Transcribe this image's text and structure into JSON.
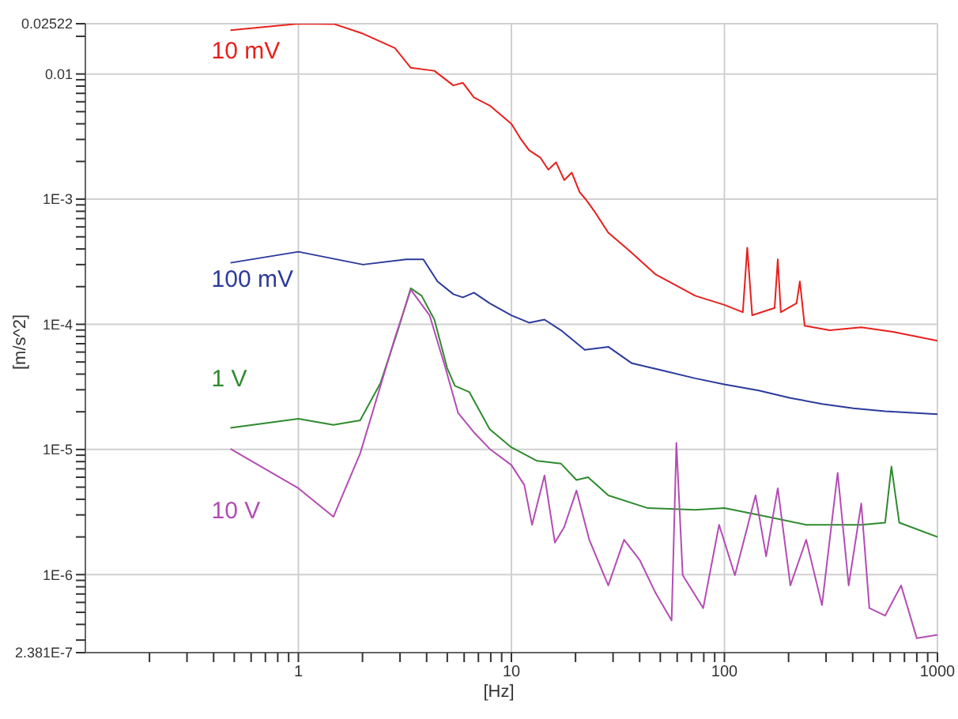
{
  "chart_data": {
    "type": "line",
    "xlabel": "[Hz]",
    "ylabel": "[m/s^2]",
    "log": "xy",
    "grid": true,
    "xlim": [
      0.1,
      1000
    ],
    "xticks": [
      {
        "value": 0.2,
        "label": null
      },
      {
        "value": 0.3,
        "label": null
      },
      {
        "value": 0.4,
        "label": null
      },
      {
        "value": 0.5,
        "label": null
      },
      {
        "value": 0.6,
        "label": null
      },
      {
        "value": 0.7,
        "label": null
      },
      {
        "value": 0.8,
        "label": null
      },
      {
        "value": 0.9,
        "label": null
      },
      1,
      {
        "value": 2,
        "label": null
      },
      {
        "value": 3,
        "label": null
      },
      {
        "value": 4,
        "label": null
      },
      {
        "value": 5,
        "label": null
      },
      {
        "value": 6,
        "label": null
      },
      {
        "value": 7,
        "label": null
      },
      {
        "value": 8,
        "label": null
      },
      {
        "value": 9,
        "label": null
      },
      10,
      {
        "value": 20,
        "label": null
      },
      {
        "value": 30,
        "label": null
      },
      {
        "value": 40,
        "label": null
      },
      {
        "value": 50,
        "label": null
      },
      {
        "value": 60,
        "label": null
      },
      {
        "value": 70,
        "label": null
      },
      {
        "value": 80,
        "label": null
      },
      {
        "value": 90,
        "label": null
      },
      100,
      {
        "value": 200,
        "label": null
      },
      {
        "value": 300,
        "label": null
      },
      {
        "value": 400,
        "label": null
      },
      {
        "value": 500,
        "label": null
      },
      {
        "value": 600,
        "label": null
      },
      {
        "value": 700,
        "label": null
      },
      {
        "value": 800,
        "label": null
      },
      {
        "value": 900,
        "label": null
      },
      1000
    ],
    "ylim": [
      2.381e-07,
      0.02522
    ],
    "yticks": [
      {
        "value": 2.381e-07,
        "label": "2.381E-7"
      },
      {
        "value": 3e-07,
        "label": null
      },
      {
        "value": 4e-07,
        "label": null
      },
      {
        "value": 5e-07,
        "label": null
      },
      {
        "value": 6e-07,
        "label": null
      },
      {
        "value": 7e-07,
        "label": null
      },
      {
        "value": 8e-07,
        "label": null
      },
      {
        "value": 9e-07,
        "label": null
      },
      {
        "value": 1e-06,
        "label": "1E-6"
      },
      {
        "value": 2e-06,
        "label": null
      },
      {
        "value": 3e-06,
        "label": null
      },
      {
        "value": 4e-06,
        "label": null
      },
      {
        "value": 5e-06,
        "label": null
      },
      {
        "value": 6e-06,
        "label": null
      },
      {
        "value": 7e-06,
        "label": null
      },
      {
        "value": 8e-06,
        "label": null
      },
      {
        "value": 9e-06,
        "label": null
      },
      {
        "value": 1e-05,
        "label": "1E-5"
      },
      {
        "value": 2e-05,
        "label": null
      },
      {
        "value": 3e-05,
        "label": null
      },
      {
        "value": 4e-05,
        "label": null
      },
      {
        "value": 5e-05,
        "label": null
      },
      {
        "value": 6e-05,
        "label": null
      },
      {
        "value": 7e-05,
        "label": null
      },
      {
        "value": 8e-05,
        "label": null
      },
      {
        "value": 9e-05,
        "label": null
      },
      {
        "value": 0.0001,
        "label": "1E-4"
      },
      {
        "value": 0.0002,
        "label": null
      },
      {
        "value": 0.0003,
        "label": null
      },
      {
        "value": 0.0004,
        "label": null
      },
      {
        "value": 0.0005,
        "label": null
      },
      {
        "value": 0.0006,
        "label": null
      },
      {
        "value": 0.0007,
        "label": null
      },
      {
        "value": 0.0008,
        "label": null
      },
      {
        "value": 0.0009,
        "label": null
      },
      {
        "value": 0.001,
        "label": "1E-3"
      },
      {
        "value": 0.002,
        "label": null
      },
      {
        "value": 0.003,
        "label": null
      },
      {
        "value": 0.004,
        "label": null
      },
      {
        "value": 0.005,
        "label": null
      },
      {
        "value": 0.006,
        "label": null
      },
      {
        "value": 0.007,
        "label": null
      },
      {
        "value": 0.008,
        "label": null
      },
      {
        "value": 0.009,
        "label": null
      },
      0.01,
      {
        "value": 0.02,
        "label": null
      },
      0.02522
    ],
    "series": [
      {
        "name": "10 mV",
        "color": "#e8201c",
        "x": [
          0.48,
          1,
          1.48,
          1.98,
          2.84,
          3.37,
          4.35,
          5.34,
          5.92,
          6.67,
          7.91,
          10,
          11.1,
          12.1,
          13.7,
          14.9,
          16.2,
          17.7,
          19.2,
          20.9,
          22.4,
          24.4,
          28.5,
          35.6,
          47.6,
          73,
          100,
          122,
          128,
          135,
          172,
          178,
          184,
          218,
          226,
          238,
          312,
          439,
          619,
          1000
        ],
        "values": [
          0.0224,
          0.0252,
          0.025,
          0.0212,
          0.0161,
          0.0112,
          0.0106,
          0.0081,
          0.0085,
          0.0065,
          0.0056,
          0.004,
          0.003,
          0.00246,
          0.00214,
          0.00172,
          0.00197,
          0.00142,
          0.00163,
          0.00114,
          0.00099,
          0.00081,
          0.00054,
          0.00039,
          0.00025,
          0.000169,
          0.000143,
          0.000125,
          0.00041,
          0.000118,
          0.000135,
          0.00033,
          0.000125,
          0.000147,
          0.00022,
          9.73e-05,
          8.95e-05,
          9.46e-05,
          8.71e-05,
          7.38e-05
        ]
      },
      {
        "name": "100 mV",
        "color": "#2b3a9c",
        "x": [
          0.48,
          1,
          2.01,
          3.2,
          3.86,
          4.5,
          5.34,
          5.92,
          6.67,
          7.91,
          10,
          12.1,
          14.3,
          17.1,
          22.1,
          28.5,
          36.8,
          51.9,
          73,
          100,
          145,
          204,
          287,
          403,
          568,
          1000
        ],
        "values": [
          0.00031,
          0.00038,
          0.0003,
          0.00033,
          0.00033,
          0.00022,
          0.000174,
          0.000164,
          0.000179,
          0.000147,
          0.000118,
          0.000103,
          0.000109,
          8.95e-05,
          6.25e-05,
          6.61e-05,
          4.88e-05,
          4.25e-05,
          3.7e-05,
          3.31e-05,
          2.96e-05,
          2.58e-05,
          2.31e-05,
          2.13e-05,
          2.02e-05,
          1.91e-05
        ]
      },
      {
        "name": "1 V",
        "color": "#2e8b2e",
        "x": [
          0.48,
          1,
          1.46,
          1.95,
          2.43,
          2.93,
          3.37,
          3.79,
          4.35,
          4.99,
          5.43,
          6.34,
          7.91,
          10,
          13.2,
          17.1,
          20.2,
          22.9,
          28.5,
          43.7,
          73,
          100,
          145,
          242,
          439,
          568,
          608,
          662,
          1000
        ],
        "values": [
          1.49e-05,
          1.76e-05,
          1.57e-05,
          1.71e-05,
          3.4e-05,
          8.95e-05,
          0.000194,
          0.000169,
          0.000109,
          4.49e-05,
          3.22e-05,
          2.88e-05,
          1.45e-05,
          1.04e-05,
          8.1e-06,
          7.7e-06,
          5.7e-06,
          6e-06,
          4.3e-06,
          3.4e-06,
          3.3e-06,
          3.4e-06,
          3e-06,
          2.5e-06,
          2.5e-06,
          2.6e-06,
          7.3e-06,
          2.6e-06,
          2e-06
        ]
      },
      {
        "name": "10 V",
        "color": "#b44cb4",
        "x": [
          0.48,
          1,
          1.46,
          1.95,
          2.84,
          3.37,
          4.13,
          4.9,
          5.62,
          6.67,
          7.91,
          10,
          11.5,
          12.5,
          14.3,
          16,
          17.7,
          20.2,
          23.2,
          28.5,
          33.8,
          40.1,
          47.6,
          56.5,
          59.5,
          63.7,
          79.5,
          94.4,
          112,
          140,
          157,
          178,
          204,
          242,
          287,
          340,
          383,
          439,
          479,
          568,
          675,
          800,
          1000
        ],
        "values": [
          1.01e-05,
          4.9e-06,
          2.9e-06,
          9.3e-06,
          7.8e-05,
          0.000189,
          0.000118,
          4.49e-05,
          1.96e-05,
          1.37e-05,
          1.01e-05,
          7.5e-06,
          5.2e-06,
          2.5e-06,
          6.2e-06,
          1.8e-06,
          2.4e-06,
          4.7e-06,
          1.9e-06,
          8.2e-07,
          1.9e-06,
          1.3e-06,
          7.1e-07,
          4.3e-07,
          1.13e-05,
          9.9e-07,
          5.4e-07,
          2.5e-06,
          9.9e-07,
          4.3e-06,
          1.4e-06,
          4.9e-06,
          8.2e-07,
          1.9e-06,
          5.7e-07,
          6.5e-06,
          8.2e-07,
          3.7e-06,
          5.4e-07,
          4.7e-07,
          8.2e-07,
          3.1e-07,
          3.3e-07
        ]
      }
    ]
  }
}
